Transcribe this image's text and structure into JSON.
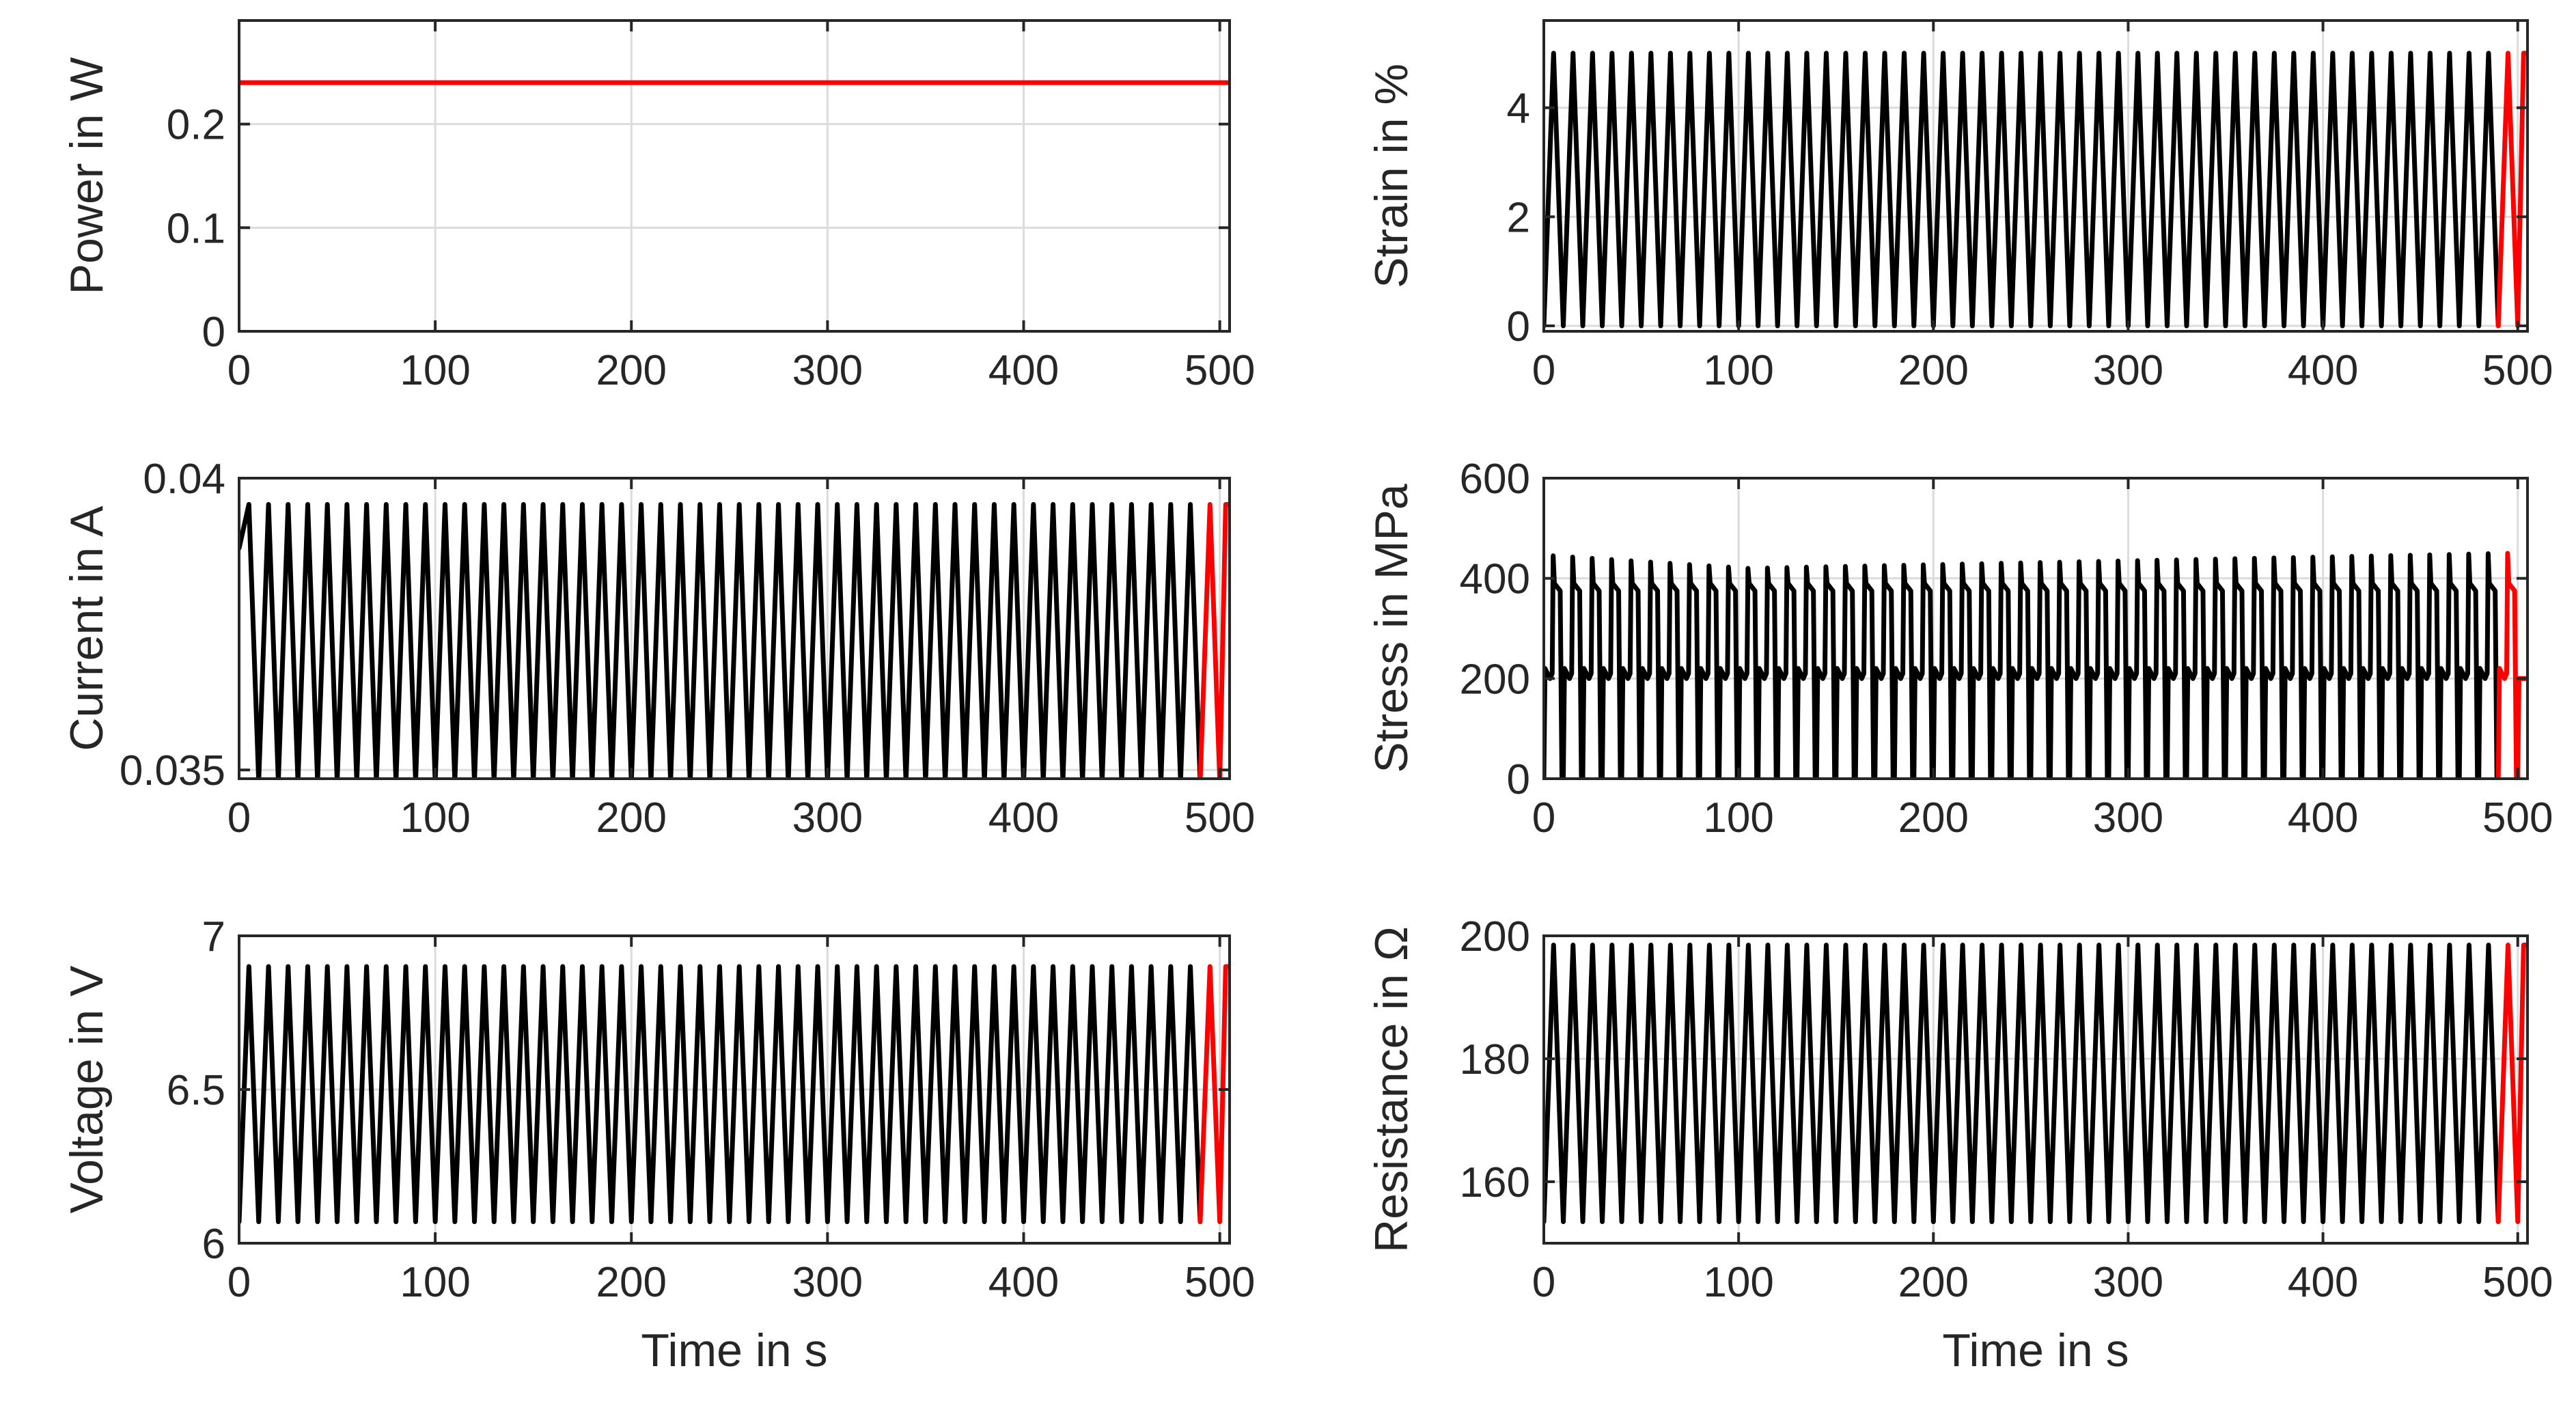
{
  "colors": {
    "signal": "#000000",
    "last_cycle": "#ff0000",
    "axes": "#262626",
    "grid": "#dcdcdc"
  },
  "chart_data": [
    {
      "id": "power",
      "type": "line",
      "ylabel": "Power in W",
      "xlabel": "",
      "xlim": [
        0,
        505
      ],
      "ylim": [
        0,
        0.3
      ],
      "xticks": [
        0,
        100,
        200,
        300,
        400,
        500
      ],
      "yticks": [
        0,
        0.1,
        0.2
      ],
      "xticklabels": [
        "0",
        "100",
        "200",
        "300",
        "400",
        "500"
      ],
      "yticklabels": [
        "0",
        "0.1",
        "0.2"
      ],
      "grid": true,
      "signal": {
        "kind": "constant",
        "value": 0.24,
        "period_s": 10,
        "cycles": 50,
        "start": 0.24,
        "highlight_from_s": 490
      }
    },
    {
      "id": "strain",
      "type": "line",
      "ylabel": "Strain in %",
      "xlabel": "",
      "xlim": [
        0,
        505
      ],
      "ylim": [
        -0.1,
        5.6
      ],
      "xticks": [
        0,
        100,
        200,
        300,
        400,
        500
      ],
      "yticks": [
        0,
        2,
        4
      ],
      "xticklabels": [
        "0",
        "100",
        "200",
        "300",
        "400",
        "500"
      ],
      "yticklabels": [
        "0",
        "2",
        "4"
      ],
      "grid": true,
      "signal": {
        "kind": "triangle",
        "low": 0,
        "high": 5.0,
        "period_s": 10,
        "cycles": 50,
        "start": 0,
        "highlight_from_s": 490
      }
    },
    {
      "id": "current",
      "type": "line",
      "ylabel": "Current in A",
      "xlabel": "",
      "xlim": [
        0,
        505
      ],
      "ylim": [
        0.03485,
        0.04
      ],
      "xticks": [
        0,
        100,
        200,
        300,
        400,
        500
      ],
      "yticks": [
        0.035,
        0.04
      ],
      "xticklabels": [
        "0",
        "100",
        "200",
        "300",
        "400",
        "500"
      ],
      "yticklabels": [
        "0.035",
        "0.04"
      ],
      "grid": true,
      "signal": {
        "kind": "triangle",
        "low": 0.0348,
        "high": 0.03955,
        "period_s": 10,
        "cycles": 50,
        "start": 0.0388,
        "highlight_from_s": 490
      }
    },
    {
      "id": "stress",
      "type": "line",
      "ylabel": "Stress in MPa",
      "xlabel": "",
      "xlim": [
        0,
        505
      ],
      "ylim": [
        0,
        600
      ],
      "xticks": [
        0,
        100,
        200,
        300,
        400,
        500
      ],
      "yticks": [
        0,
        200,
        400,
        600
      ],
      "xticklabels": [
        "0",
        "100",
        "200",
        "300",
        "400",
        "500"
      ],
      "yticklabels": [
        "0",
        "200",
        "400",
        "600"
      ],
      "grid": true,
      "signal": {
        "kind": "stress",
        "low": 0,
        "plateau_low": 200,
        "plateau_high": 375,
        "peak_start": 445,
        "peak_mid": 420,
        "peak_end": 450,
        "period_s": 10,
        "cycles": 50,
        "start": 0,
        "highlight_from_s": 490
      }
    },
    {
      "id": "voltage",
      "type": "line",
      "ylabel": "Voltage in V",
      "xlabel": "Time in s",
      "xlim": [
        0,
        505
      ],
      "ylim": [
        6,
        7
      ],
      "xticks": [
        0,
        100,
        200,
        300,
        400,
        500
      ],
      "yticks": [
        6,
        6.5,
        7
      ],
      "xticklabels": [
        "0",
        "100",
        "200",
        "300",
        "400",
        "500"
      ],
      "yticklabels": [
        "6",
        "6.5",
        "7"
      ],
      "grid": true,
      "signal": {
        "kind": "triangle",
        "low": 6.07,
        "high": 6.9,
        "period_s": 10,
        "cycles": 50,
        "start": 6.07,
        "highlight_from_s": 490
      }
    },
    {
      "id": "resistance",
      "type": "line",
      "ylabel": "Resistance in Ω",
      "xlabel": "Time in s",
      "xlim": [
        0,
        505
      ],
      "ylim": [
        150,
        200
      ],
      "xticks": [
        0,
        100,
        200,
        300,
        400,
        500
      ],
      "yticks": [
        160,
        180,
        200
      ],
      "xticklabels": [
        "0",
        "100",
        "200",
        "300",
        "400",
        "500"
      ],
      "yticklabels": [
        "160",
        "180",
        "200"
      ],
      "grid": true,
      "signal": {
        "kind": "triangle",
        "low": 153.5,
        "high": 198.5,
        "period_s": 10,
        "cycles": 50,
        "start": 153.5,
        "highlight_from_s": 490
      }
    }
  ]
}
